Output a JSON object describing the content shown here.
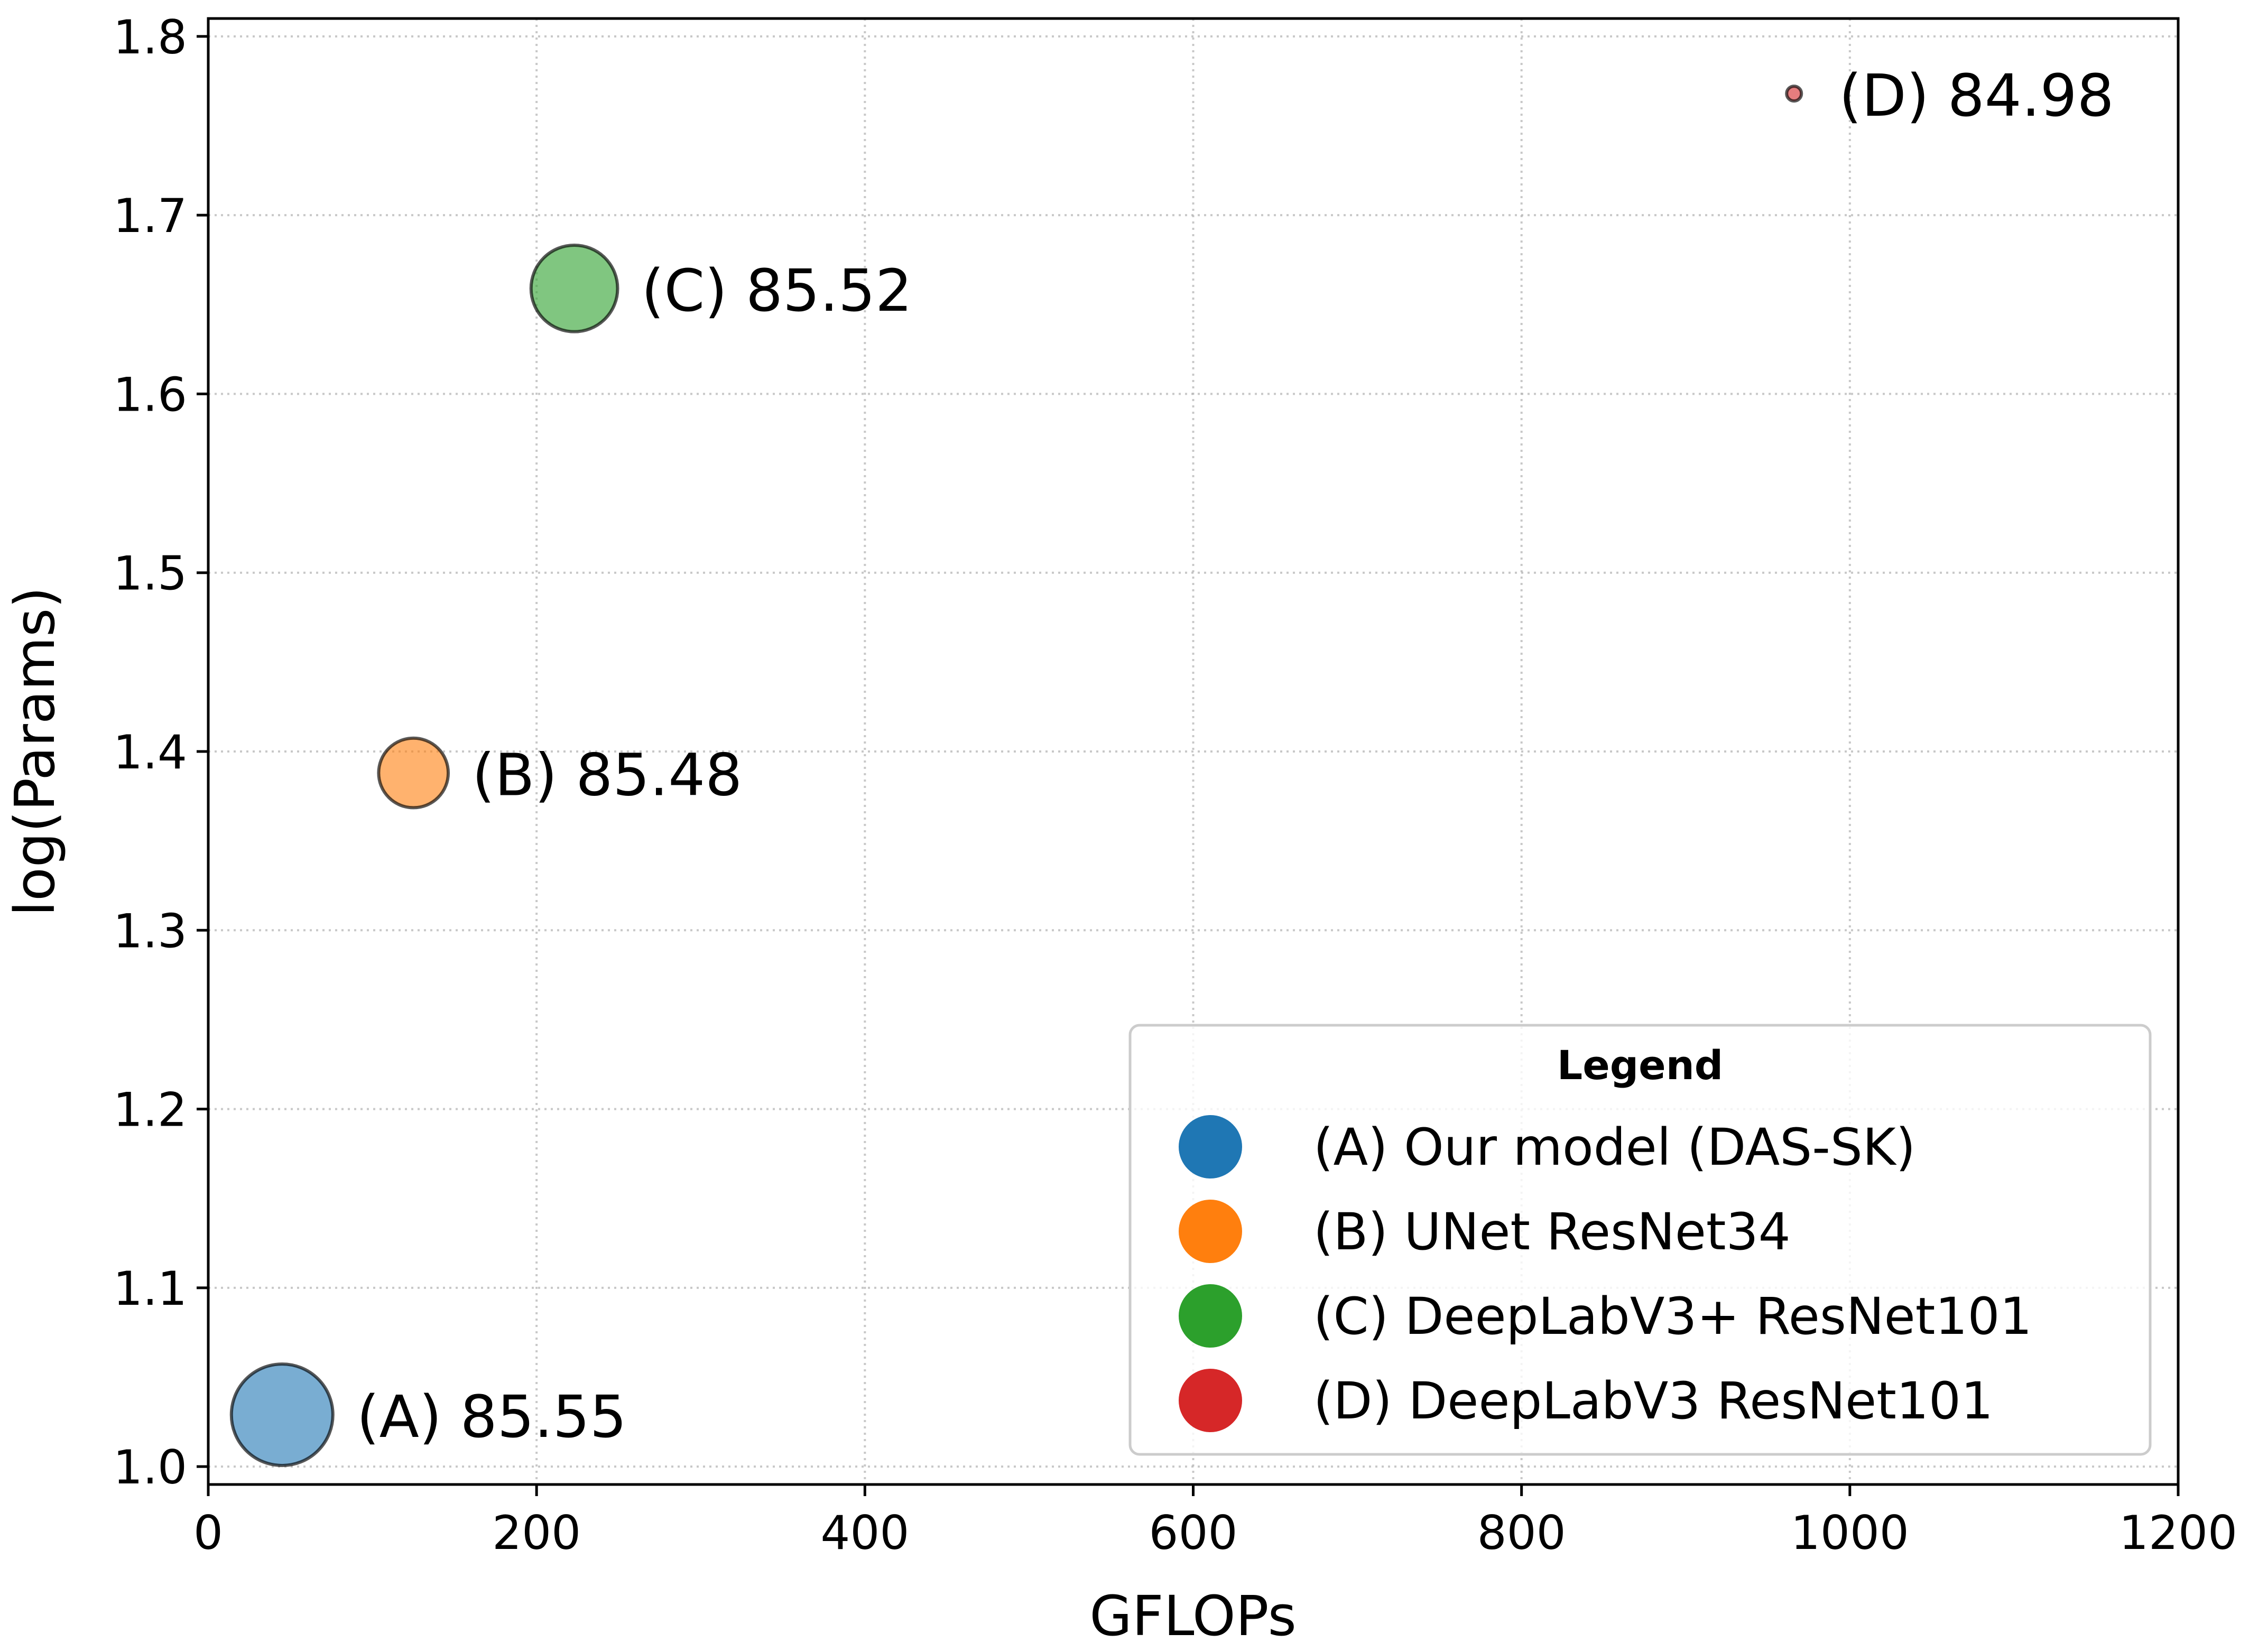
{
  "chart_data": {
    "type": "scatter",
    "title": "",
    "xlabel": "GFLOPs",
    "ylabel": "log(Params)",
    "xlim": [
      0,
      1200
    ],
    "ylim": [
      0.99,
      1.81
    ],
    "xticks": [
      0,
      200,
      400,
      600,
      800,
      1000,
      1200
    ],
    "yticks": [
      1.0,
      1.1,
      1.2,
      1.3,
      1.4,
      1.5,
      1.6,
      1.7,
      1.8
    ],
    "xtick_labels": [
      "0",
      "200",
      "400",
      "600",
      "800",
      "1000",
      "1200"
    ],
    "ytick_labels": [
      "1.0",
      "1.1",
      "1.2",
      "1.3",
      "1.4",
      "1.5",
      "1.6",
      "1.7",
      "1.8"
    ],
    "grid": true,
    "points": [
      {
        "id": "A",
        "x": 45,
        "y": 1.029,
        "size": 85.55,
        "label": "(A) 85.55",
        "color": "#1f77b4"
      },
      {
        "id": "B",
        "x": 125,
        "y": 1.388,
        "size": 85.48,
        "label": "(B) 85.48",
        "color": "#ff7f0e"
      },
      {
        "id": "C",
        "x": 223,
        "y": 1.659,
        "size": 85.52,
        "label": "(C) 85.52",
        "color": "#2ca02c"
      },
      {
        "id": "D",
        "x": 966,
        "y": 1.768,
        "size": 84.98,
        "label": "(D) 84.98",
        "color": "#d62728"
      }
    ],
    "legend": {
      "title": "Legend",
      "position": "lower-right",
      "entries": [
        {
          "label": "(A) Our model (DAS-SK)",
          "color": "#1f77b4"
        },
        {
          "label": "(B) UNet ResNet34",
          "color": "#ff7f0e"
        },
        {
          "label": "(C) DeepLabV3+ ResNet101",
          "color": "#2ca02c"
        },
        {
          "label": "(D) DeepLabV3 ResNet101",
          "color": "#d62728"
        }
      ]
    }
  }
}
